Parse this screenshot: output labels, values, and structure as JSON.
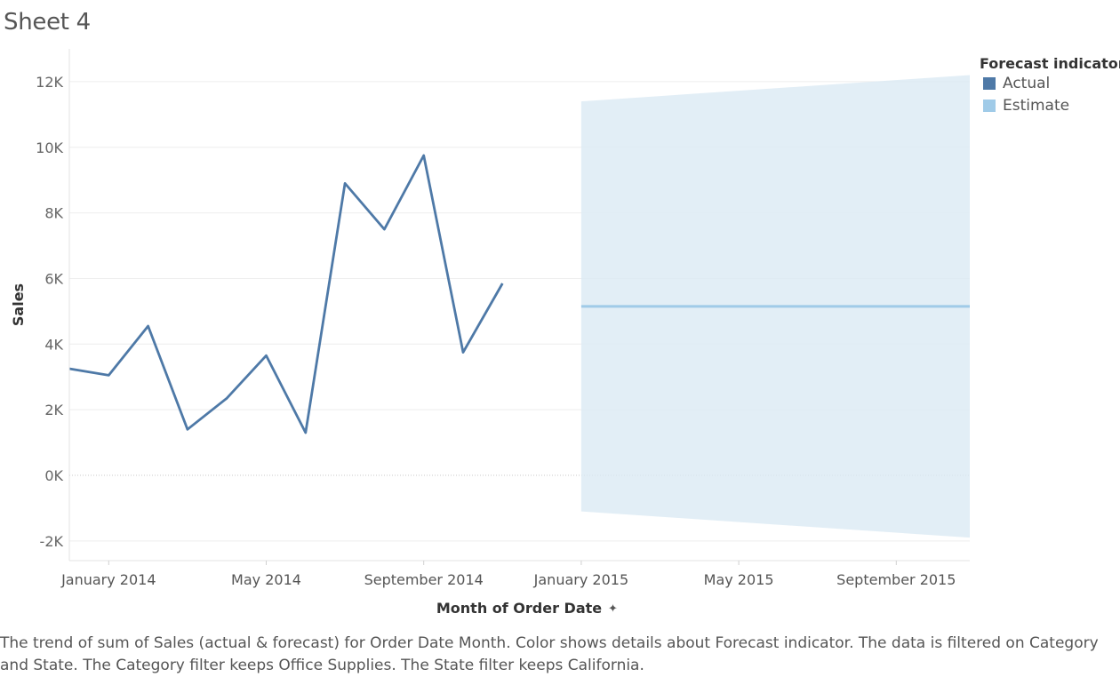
{
  "sheet_title": "Sheet 4",
  "legend": {
    "title": "Forecast indicator",
    "items": [
      {
        "label": "Actual",
        "color": "#4e79a7"
      },
      {
        "label": "Estimate",
        "color": "#a0cbe8"
      }
    ]
  },
  "caption": "The trend of sum of Sales (actual & forecast)  for Order Date Month.  Color shows details about Forecast indicator. The data is filtered on Category and State. The Category filter keeps Office Supplies. The State filter keeps California.",
  "chart_data": {
    "type": "line",
    "xlabel": "Month of Order Date",
    "ylabel": "Sales",
    "ylim": [
      -2600,
      13000
    ],
    "y_ticks": [
      -2000,
      0,
      2000,
      4000,
      6000,
      8000,
      10000,
      12000
    ],
    "y_tick_labels": [
      "-2K",
      "0K",
      "2K",
      "4K",
      "6K",
      "8K",
      "10K",
      "12K"
    ],
    "x_ticks": [
      "2014-01",
      "2014-05",
      "2014-09",
      "2015-01",
      "2015-05",
      "2015-09"
    ],
    "x_tick_labels": [
      "January 2014",
      "May 2014",
      "September 2014",
      "January 2015",
      "May 2015",
      "September 2015"
    ],
    "grid": true,
    "series": [
      {
        "name": "Actual",
        "color": "#4e79a7",
        "x": [
          "2013-12",
          "2014-01",
          "2014-02",
          "2014-03",
          "2014-04",
          "2014-05",
          "2014-06",
          "2014-07",
          "2014-08",
          "2014-09",
          "2014-10",
          "2014-11",
          "2014-12"
        ],
        "values": [
          3250,
          3050,
          4550,
          1400,
          2350,
          3650,
          1300,
          8900,
          7500,
          9750,
          3750,
          5850,
          null
        ]
      },
      {
        "name": "Estimate",
        "color": "#a0cbe8",
        "x": [
          "2015-01",
          "2015-12"
        ],
        "values": [
          5150,
          5150
        ],
        "band_upper": [
          11400,
          12200
        ],
        "band_lower": [
          -1100,
          -1900
        ]
      }
    ]
  }
}
